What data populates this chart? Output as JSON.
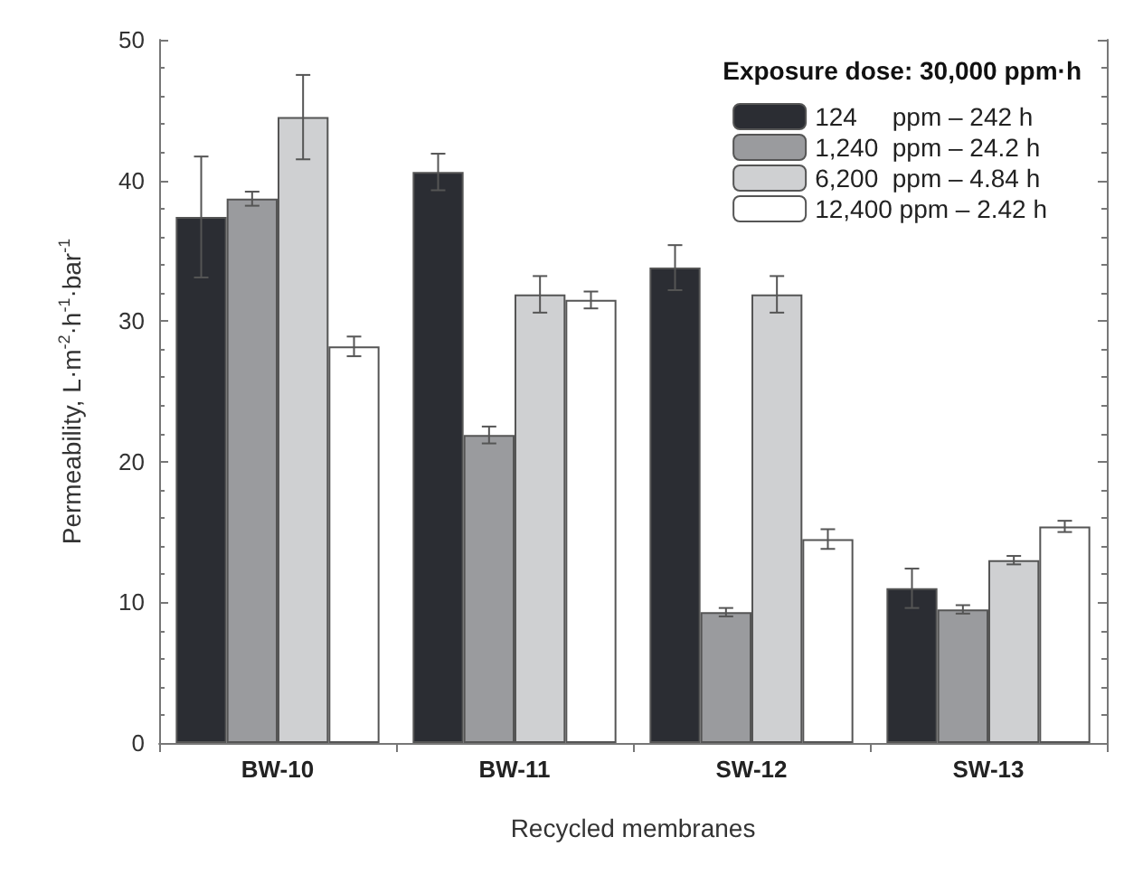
{
  "chart_data": {
    "type": "bar",
    "categories": [
      "BW-10",
      "BW-11",
      "SW-12",
      "SW-13"
    ],
    "xlabel": "Recycled membranes",
    "ylabel": "Permeability, L·m$^{-2}$·h$^{-1}$·bar$^{-1}$",
    "legend_title": "Exposure dose: 30,000 ppm·h",
    "series": [
      {
        "name": "124     ppm – 242 h",
        "color": "#2b2d33",
        "values": [
          37.4,
          40.6,
          33.8,
          11.0
        ],
        "errors": [
          4.3,
          1.3,
          1.6,
          1.4
        ]
      },
      {
        "name": "1,240  ppm – 24.2 h",
        "color": "#9a9b9e",
        "values": [
          38.7,
          21.9,
          9.3,
          9.5
        ],
        "errors": [
          0.5,
          0.6,
          0.3,
          0.3
        ]
      },
      {
        "name": "6,200  ppm – 4.84 h",
        "color": "#cfd0d2",
        "values": [
          44.5,
          31.9,
          31.9,
          13.0
        ],
        "errors": [
          3.0,
          1.3,
          1.3,
          0.3
        ]
      },
      {
        "name": "12,400 ppm – 2.42 h",
        "color": "#ffffff",
        "values": [
          28.2,
          31.5,
          14.5,
          15.4
        ],
        "errors": [
          0.7,
          0.6,
          0.7,
          0.4
        ]
      }
    ],
    "ylim": [
      0,
      50
    ],
    "yticks": [
      0,
      10,
      20,
      30,
      40,
      50
    ],
    "grid": false,
    "legend": "top right"
  }
}
